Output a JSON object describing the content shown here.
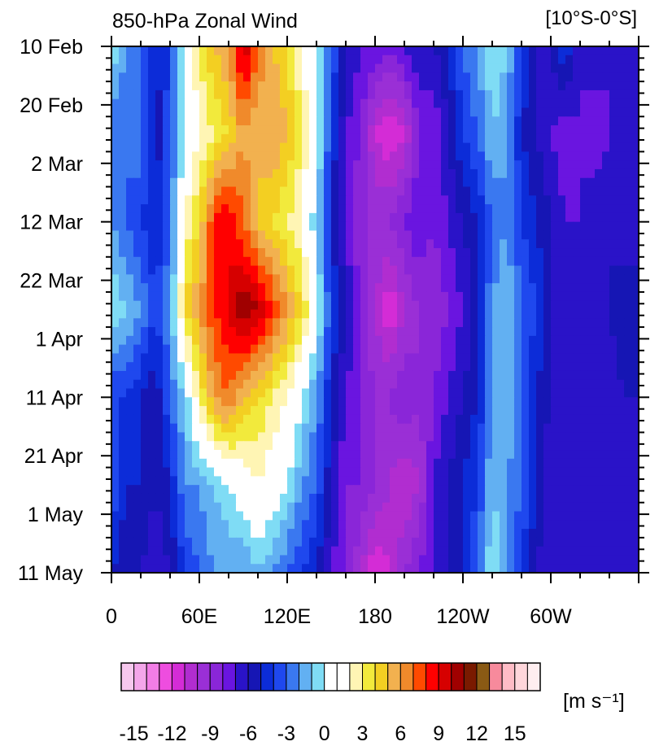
{
  "chart_data": {
    "type": "heatmap",
    "title": "850-hPa Zonal Wind",
    "region_label": "[10°S-0°S]",
    "y_ticks": [
      "10 Feb",
      "20 Feb",
      "2 Mar",
      "12 Mar",
      "22 Mar",
      "1 Apr",
      "11 Apr",
      "21 Apr",
      "1 May",
      "11 May"
    ],
    "x_ticks": [
      "0",
      "60E",
      "120E",
      "180",
      "120W",
      "60W"
    ],
    "x_lim_deg_east": [
      0,
      360
    ],
    "x_tick_values_deg_east": [
      0,
      60,
      120,
      180,
      240,
      300
    ],
    "y_lim_days_from_10_feb": [
      0,
      90
    ],
    "colorbar": {
      "unit_label": "[m s⁻¹]",
      "tick_labels": [
        "-15",
        "-12",
        "-9",
        "-6",
        "-3",
        "0",
        "3",
        "6",
        "9",
        "12",
        "15"
      ],
      "colors": [
        "#f7c8ee",
        "#f4a6ea",
        "#f27de6",
        "#ee4ddf",
        "#d42cd6",
        "#b12dd0",
        "#9a2fd6",
        "#8a26d8",
        "#6a15e0",
        "#2a13c8",
        "#1616b4",
        "#0c2cd8",
        "#1f48ee",
        "#3a78f0",
        "#62b0f2",
        "#7fdcf5",
        "#ffffff",
        "#ffffff",
        "#fff5b4",
        "#f2ea3c",
        "#f3cf22",
        "#f2b14f",
        "#f08a2b",
        "#ff4a00",
        "#ff0000",
        "#d60000",
        "#a00000",
        "#7a1a00",
        "#8a5a14",
        "#f78a9c",
        "#ffbcc6",
        "#ffd6db",
        "#ffeef0"
      ]
    },
    "columns_deg_east": [
      0,
      10,
      20,
      30,
      40,
      50,
      60,
      70,
      80,
      90,
      100,
      110,
      120,
      130,
      140,
      150,
      160,
      170,
      180,
      190,
      200,
      210,
      220,
      230,
      240,
      250,
      260,
      270,
      280,
      290,
      300,
      310,
      320,
      330,
      340,
      350
    ],
    "rows_day": [
      0,
      15,
      30,
      45,
      60,
      75,
      90
    ],
    "values_m_s": [
      [
        0,
        -2,
        -3,
        -5,
        -4,
        1,
        3,
        5,
        6,
        10,
        7,
        5,
        4,
        2,
        0,
        -3,
        -6,
        -7,
        -7,
        -8,
        -7,
        -6,
        -6,
        -5,
        -3,
        -2,
        0,
        -1,
        -4,
        -6,
        -6,
        -4,
        -7,
        -6,
        -7,
        -7
      ],
      [
        -3,
        -3,
        -2,
        -6,
        -3,
        0,
        2,
        3,
        4,
        6,
        5,
        6,
        5,
        3,
        1,
        -4,
        -7,
        -8,
        -11,
        -12,
        -11,
        -8,
        -8,
        -6,
        -4,
        -3,
        -1,
        -2,
        -5,
        -6,
        -7,
        -8,
        -7,
        -8,
        -7,
        -6
      ],
      [
        -2,
        -3,
        -4,
        -5,
        -3,
        2,
        4,
        8,
        9,
        7,
        5,
        4,
        3,
        2,
        -1,
        -5,
        -7,
        -9,
        -9,
        -9,
        -8,
        -7,
        -8,
        -7,
        -6,
        -5,
        -3,
        -2,
        -4,
        -5,
        -6,
        -7,
        -7,
        -6,
        -6,
        -7
      ],
      [
        0,
        -1,
        -2,
        -4,
        -2,
        4,
        6,
        8,
        9,
        11,
        10,
        8,
        6,
        4,
        1,
        -4,
        -6,
        -8,
        -10,
        -12,
        -10,
        -9,
        -9,
        -8,
        -7,
        -5,
        -2,
        -1,
        -3,
        -4,
        -6,
        -7,
        -7,
        -7,
        -6,
        -5
      ],
      [
        -4,
        -4,
        -5,
        -6,
        -3,
        -1,
        3,
        6,
        7,
        5,
        4,
        3,
        2,
        0,
        -2,
        -5,
        -7,
        -8,
        -9,
        -9,
        -8,
        -9,
        -8,
        -7,
        -6,
        -5,
        -2,
        -1,
        -3,
        -5,
        -6,
        -7,
        -7,
        -6,
        -7,
        -6
      ],
      [
        -3,
        -5,
        -5,
        -6,
        -5,
        -2,
        -2,
        -1,
        0,
        1,
        2,
        1,
        0,
        -2,
        -3,
        -6,
        -8,
        -8,
        -9,
        -10,
        -11,
        -10,
        -7,
        -6,
        -5,
        -4,
        -1,
        -2,
        -3,
        -5,
        -7,
        -7,
        -7,
        -6,
        -6,
        -7
      ],
      [
        -5,
        -6,
        -6,
        -7,
        -6,
        -4,
        -3,
        -2,
        -2,
        -2,
        -1,
        -2,
        -3,
        -4,
        -5,
        -7,
        -8,
        -10,
        -12,
        -11,
        -9,
        -8,
        -7,
        -6,
        -5,
        -3,
        0,
        -2,
        -4,
        -6,
        -7,
        -7,
        -6,
        -7,
        -7,
        -7
      ]
    ],
    "grid": false
  }
}
